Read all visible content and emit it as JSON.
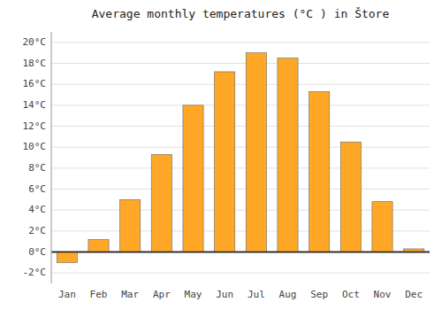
{
  "chart_data": {
    "type": "bar",
    "title": "Average monthly temperatures (°C ) in Štore",
    "categories": [
      "Jan",
      "Feb",
      "Mar",
      "Apr",
      "May",
      "Jun",
      "Jul",
      "Aug",
      "Sep",
      "Oct",
      "Nov",
      "Dec"
    ],
    "values": [
      -1.0,
      1.2,
      5.0,
      9.3,
      14.0,
      17.2,
      19.0,
      18.5,
      15.3,
      10.5,
      4.8,
      0.3
    ],
    "color": "#FFA726",
    "ylim": [
      -3,
      21
    ],
    "yticks": [
      {
        "value": -2,
        "label": "-2°C"
      },
      {
        "value": 0,
        "label": "0°C"
      },
      {
        "value": 2,
        "label": "2°C"
      },
      {
        "value": 4,
        "label": "4°C"
      },
      {
        "value": 6,
        "label": "6°C"
      },
      {
        "value": 8,
        "label": "8°C"
      },
      {
        "value": 10,
        "label": "10°C"
      },
      {
        "value": 12,
        "label": "12°C"
      },
      {
        "value": 14,
        "label": "14°C"
      },
      {
        "value": 16,
        "label": "16°C"
      },
      {
        "value": 18,
        "label": "18°C"
      },
      {
        "value": 20,
        "label": "20°C"
      }
    ],
    "grid": true
  }
}
